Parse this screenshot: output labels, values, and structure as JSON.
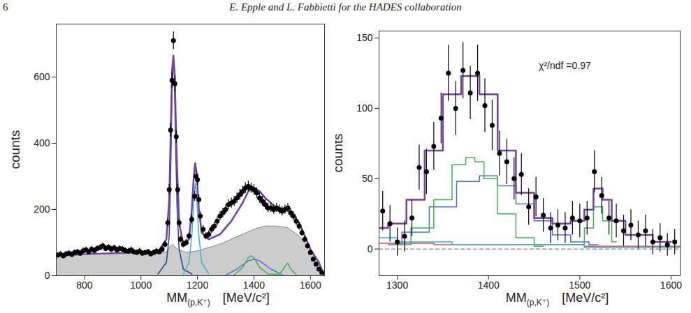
{
  "header": {
    "page": "6",
    "text": "E. Epple and L. Fabbietti for the HADES collaboration"
  },
  "chart_data": [
    {
      "type": "scatter",
      "xlabel": {
        "text": "MM",
        "subscript": "(p,K⁺)",
        "unit": "[MeV/c²]"
      },
      "ylabel": "counts",
      "xlim": [
        700,
        1650
      ],
      "ylim": [
        0,
        760
      ],
      "xticks": [
        800,
        1000,
        1200,
        1400,
        1600
      ],
      "yticks": [
        0,
        200,
        400,
        600
      ],
      "color": "#000000",
      "marker": "circle",
      "x": [
        705,
        715,
        725,
        735,
        745,
        755,
        765,
        775,
        785,
        795,
        805,
        815,
        825,
        835,
        845,
        855,
        865,
        875,
        885,
        895,
        905,
        915,
        925,
        935,
        945,
        955,
        965,
        975,
        985,
        995,
        1005,
        1015,
        1025,
        1035,
        1045,
        1055,
        1065,
        1075,
        1085,
        1095,
        1100,
        1105,
        1110,
        1115,
        1120,
        1125,
        1130,
        1135,
        1140,
        1150,
        1160,
        1170,
        1180,
        1190,
        1195,
        1200,
        1205,
        1210,
        1220,
        1230,
        1240,
        1250,
        1260,
        1270,
        1280,
        1290,
        1300,
        1310,
        1320,
        1330,
        1340,
        1350,
        1360,
        1370,
        1380,
        1390,
        1400,
        1410,
        1420,
        1430,
        1440,
        1450,
        1460,
        1470,
        1480,
        1490,
        1500,
        1510,
        1520,
        1530,
        1540,
        1550,
        1560,
        1570,
        1580,
        1590,
        1600,
        1610,
        1620,
        1630,
        1640
      ],
      "values": [
        62,
        65,
        60,
        66,
        68,
        64,
        70,
        72,
        68,
        75,
        78,
        72,
        80,
        76,
        82,
        85,
        90,
        82,
        86,
        80,
        84,
        78,
        82,
        80,
        76,
        74,
        78,
        72,
        70,
        74,
        68,
        70,
        72,
        66,
        70,
        74,
        72,
        80,
        95,
        160,
        260,
        440,
        590,
        710,
        580,
        420,
        260,
        160,
        110,
        95,
        100,
        120,
        170,
        240,
        300,
        290,
        230,
        180,
        140,
        120,
        125,
        140,
        150,
        165,
        180,
        190,
        200,
        215,
        220,
        225,
        235,
        245,
        255,
        265,
        270,
        265,
        260,
        250,
        235,
        225,
        215,
        205,
        205,
        200,
        205,
        200,
        195,
        200,
        205,
        190,
        180,
        165,
        150,
        130,
        110,
        90,
        70,
        50,
        35,
        20,
        10
      ],
      "errors": [
        8,
        8,
        8,
        8,
        8,
        8,
        8,
        8,
        8,
        9,
        9,
        8,
        9,
        9,
        9,
        9,
        9,
        9,
        9,
        9,
        9,
        9,
        9,
        9,
        9,
        9,
        9,
        8,
        8,
        9,
        8,
        8,
        8,
        8,
        8,
        9,
        8,
        9,
        10,
        13,
        16,
        21,
        24,
        27,
        24,
        20,
        16,
        13,
        10,
        10,
        10,
        11,
        13,
        15,
        17,
        17,
        15,
        13,
        12,
        11,
        11,
        12,
        12,
        13,
        13,
        14,
        14,
        15,
        15,
        15,
        15,
        16,
        16,
        16,
        16,
        16,
        16,
        16,
        15,
        15,
        15,
        14,
        14,
        14,
        14,
        14,
        14,
        14,
        14,
        14,
        13,
        13,
        12,
        11,
        10,
        9,
        8,
        7,
        6,
        4,
        3
      ],
      "series": [
        {
          "type": "area",
          "color": "#cccccc",
          "x": [
            700,
            800,
            900,
            1000,
            1060,
            1090,
            1110,
            1130,
            1160,
            1200,
            1240,
            1280,
            1320,
            1360,
            1400,
            1440,
            1480,
            1520,
            1560,
            1600,
            1630,
            1650
          ],
          "values": [
            60,
            65,
            68,
            70,
            68,
            72,
            95,
            80,
            70,
            75,
            85,
            95,
            110,
            125,
            140,
            150,
            150,
            145,
            120,
            80,
            40,
            0
          ]
        },
        {
          "type": "line",
          "color": "#1f3d99",
          "x": [
            1060,
            1090,
            1100,
            1105,
            1110,
            1115,
            1118,
            1122,
            1128,
            1135,
            1150,
            1180
          ],
          "values": [
            5,
            40,
            120,
            300,
            560,
            660,
            620,
            420,
            200,
            80,
            20,
            5
          ]
        },
        {
          "type": "line",
          "color": "#35b5d9",
          "x": [
            1150,
            1170,
            1180,
            1187,
            1192,
            1197,
            1205,
            1215,
            1240
          ],
          "values": [
            5,
            40,
            120,
            230,
            280,
            240,
            120,
            40,
            5
          ]
        },
        {
          "type": "line",
          "color": "#4d6fd6",
          "x": [
            1300,
            1340,
            1380,
            1400,
            1420,
            1460,
            1500
          ],
          "values": [
            2,
            20,
            45,
            50,
            45,
            20,
            3
          ]
        },
        {
          "type": "line",
          "color": "#3cb44b",
          "x": [
            1330,
            1360,
            1380,
            1390,
            1400,
            1420,
            1450,
            1490,
            1505,
            1515,
            1520,
            1530,
            1550
          ],
          "values": [
            2,
            25,
            55,
            60,
            55,
            25,
            5,
            5,
            20,
            35,
            38,
            20,
            3
          ]
        },
        {
          "type": "line",
          "color": "#7b3fa0",
          "x": [
            700,
            800,
            900,
            1000,
            1060,
            1090,
            1100,
            1105,
            1110,
            1115,
            1120,
            1125,
            1135,
            1150,
            1170,
            1180,
            1187,
            1192,
            1197,
            1205,
            1215,
            1240,
            1280,
            1320,
            1360,
            1380,
            1400,
            1420,
            1440,
            1480,
            1520,
            1560,
            1600,
            1630,
            1650
          ],
          "values": [
            60,
            65,
            68,
            70,
            72,
            110,
            230,
            420,
            620,
            665,
            600,
            400,
            160,
            95,
            110,
            200,
            300,
            340,
            310,
            200,
            130,
            110,
            125,
            165,
            220,
            255,
            265,
            255,
            235,
            205,
            200,
            160,
            80,
            40,
            0
          ]
        }
      ]
    },
    {
      "type": "scatter",
      "xlabel": {
        "text": "MM",
        "subscript": "(p,K⁺)",
        "unit": "[MeV/c²]"
      },
      "ylabel": "counts",
      "xlim": [
        1280,
        1610
      ],
      "ylim": [
        -19,
        155
      ],
      "xticks": [
        1300,
        1400,
        1500,
        1600
      ],
      "yticks": [
        0,
        50,
        100,
        150
      ],
      "color": "#000000",
      "marker": "circle",
      "annotations": [
        {
          "text": "χ²/ndf =0.97",
          "x": 1455,
          "y": 130
        }
      ],
      "x": [
        1284,
        1292,
        1300,
        1308,
        1316,
        1324,
        1332,
        1340,
        1348,
        1356,
        1364,
        1372,
        1380,
        1388,
        1396,
        1404,
        1412,
        1420,
        1428,
        1436,
        1444,
        1452,
        1460,
        1468,
        1476,
        1484,
        1492,
        1500,
        1508,
        1516,
        1524,
        1532,
        1540,
        1548,
        1556,
        1564,
        1572,
        1580,
        1588,
        1596,
        1604
      ],
      "values": [
        27,
        18,
        5,
        9,
        22,
        58,
        55,
        73,
        93,
        125,
        100,
        127,
        111,
        125,
        102,
        88,
        68,
        62,
        50,
        53,
        30,
        37,
        24,
        15,
        17,
        15,
        22,
        20,
        22,
        55,
        38,
        22,
        20,
        13,
        17,
        10,
        13,
        5,
        8,
        3,
        5
      ],
      "errors": [
        14,
        13,
        10,
        11,
        13,
        16,
        16,
        17,
        18,
        20,
        19,
        20,
        19,
        20,
        19,
        18,
        16,
        16,
        15,
        15,
        13,
        14,
        12,
        11,
        11,
        11,
        12,
        12,
        12,
        15,
        13,
        12,
        12,
        11,
        11,
        10,
        11,
        9,
        10,
        8,
        9
      ],
      "series": [
        {
          "type": "step",
          "color": "#999999",
          "line_style": "dashed",
          "x": [
            1280,
            1400,
            1610
          ],
          "values": [
            0,
            0,
            0
          ]
        },
        {
          "type": "step",
          "color": "#e0505a",
          "x": [
            1280,
            1400,
            1610
          ],
          "values": [
            4,
            3,
            2
          ]
        },
        {
          "type": "step",
          "color": "#35b5d9",
          "x": [
            1280,
            1320,
            1400,
            1610
          ],
          "values": [
            8,
            5,
            3,
            1
          ]
        },
        {
          "type": "step",
          "color": "#4d6fd6",
          "x": [
            1290,
            1320,
            1350,
            1380,
            1400,
            1420,
            1440,
            1460,
            1480,
            1500,
            1520
          ],
          "values": [
            3,
            12,
            30,
            48,
            52,
            45,
            32,
            20,
            10,
            5,
            3
          ]
        },
        {
          "type": "step",
          "color": "#3cb44b",
          "x": [
            1300,
            1330,
            1350,
            1370,
            1380,
            1390,
            1400,
            1420,
            1440,
            1460
          ],
          "values": [
            3,
            15,
            35,
            60,
            65,
            62,
            50,
            25,
            8,
            2
          ]
        },
        {
          "type": "step",
          "color": "#3cb44b",
          "x": [
            1500,
            1510,
            1520,
            1530,
            1540
          ],
          "values": [
            3,
            15,
            30,
            20,
            5
          ]
        },
        {
          "type": "step",
          "color": "#7b3fa0",
          "x": [
            1280,
            1300,
            1320,
            1340,
            1360,
            1380,
            1400,
            1420,
            1440,
            1460,
            1480,
            1500,
            1510,
            1520,
            1530,
            1540,
            1560,
            1600
          ],
          "values": [
            15,
            18,
            35,
            70,
            110,
            123,
            110,
            70,
            40,
            22,
            18,
            20,
            28,
            43,
            35,
            20,
            10,
            5
          ]
        }
      ]
    }
  ]
}
